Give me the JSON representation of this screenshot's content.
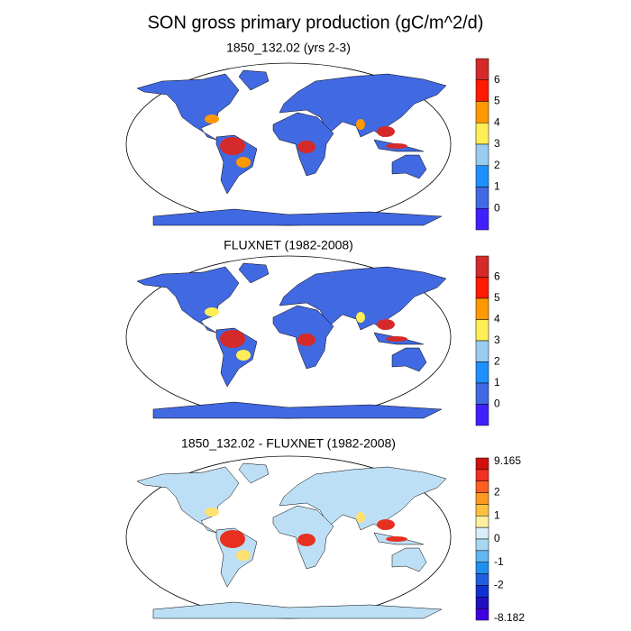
{
  "title": "SON gross primary production (gC/m^2/d)",
  "panels": [
    {
      "title": "1850_132.02 (yrs 2-3)",
      "colorbar": [
        6,
        5,
        4,
        3,
        2,
        1,
        0
      ]
    },
    {
      "title": "FLUXNET (1982-2008)",
      "colorbar": [
        6,
        5,
        4,
        3,
        2,
        1,
        0
      ]
    },
    {
      "title": "1850_132.02 - FLUXNET (1982-2008)",
      "colorbar": [
        9.165,
        2,
        1,
        0,
        -1,
        -2,
        -8.182
      ]
    }
  ]
}
